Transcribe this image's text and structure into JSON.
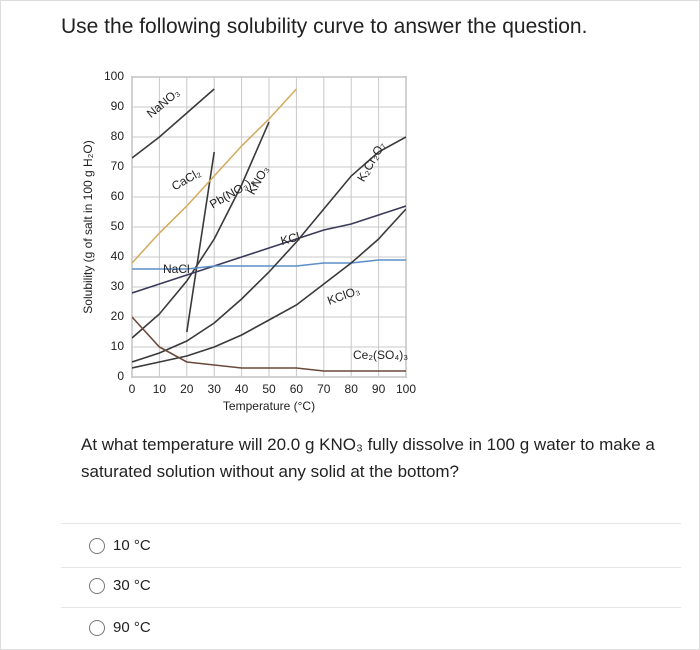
{
  "header": {
    "title": "Use the following solubility curve to answer the question."
  },
  "chart_data": {
    "type": "line",
    "x": [
      0,
      10,
      20,
      30,
      40,
      50,
      60,
      70,
      80,
      90,
      100
    ],
    "xlim": [
      0,
      100
    ],
    "xticks": [
      0,
      10,
      20,
      30,
      40,
      50,
      60,
      70,
      80,
      90,
      100
    ],
    "ylim": [
      0,
      100
    ],
    "yticks": [
      0,
      10,
      20,
      30,
      40,
      50,
      60,
      70,
      80,
      90,
      100
    ],
    "x_label": "Temperature (°C)",
    "y_label": "Solubility (g of salt in 100 g H₂O)",
    "grid": true,
    "series": [
      {
        "name": "NaNO₃",
        "color": "#3a3a3a",
        "values": [
          73,
          80,
          88,
          96,
          null,
          null,
          null,
          null,
          null,
          null,
          null
        ]
      },
      {
        "name": "CaCl₂",
        "color": "#3a3a3a",
        "values": [
          null,
          null,
          15,
          75,
          null,
          null,
          null,
          null,
          null,
          null,
          null
        ]
      },
      {
        "name": "Pb(NO₃)₂",
        "color": "#d4ac62",
        "values": [
          38,
          48,
          57,
          67,
          77,
          86,
          96,
          null,
          null,
          null,
          null
        ]
      },
      {
        "name": "KNO₃",
        "color": "#3a3a3a",
        "values": [
          13,
          21,
          32,
          46,
          64,
          85,
          null,
          null,
          null,
          null,
          null
        ]
      },
      {
        "name": "KCl",
        "color": "#3a3a5a",
        "values": [
          28,
          31,
          34,
          37,
          40,
          43,
          46,
          49,
          51,
          54,
          57
        ]
      },
      {
        "name": "NaCl",
        "color": "#5b8fc9",
        "values": [
          36,
          36,
          36,
          37,
          37,
          37,
          37,
          38,
          38,
          39,
          39
        ]
      },
      {
        "name": "K₂Cr₂O₇",
        "color": "#3a3a3a",
        "values": [
          5,
          8,
          12,
          18,
          26,
          35,
          45,
          56,
          67,
          75,
          80
        ]
      },
      {
        "name": "KClO₃",
        "color": "#3a3a3a",
        "values": [
          3,
          5,
          7,
          10,
          14,
          19,
          24,
          31,
          38,
          46,
          56
        ]
      },
      {
        "name": "Ce₂(SO₄)₃",
        "color": "#6a4a3a",
        "values": [
          20,
          10,
          5,
          4,
          3,
          3,
          3,
          2,
          2,
          2,
          2
        ]
      }
    ]
  },
  "question": {
    "prompt": "At what temperature will 20.0 g KNO₃ fully dissolve in 100 g water to make a saturated solution without any solid at the bottom?",
    "options": [
      "10 °C",
      "30 °C",
      "90 °C"
    ]
  }
}
